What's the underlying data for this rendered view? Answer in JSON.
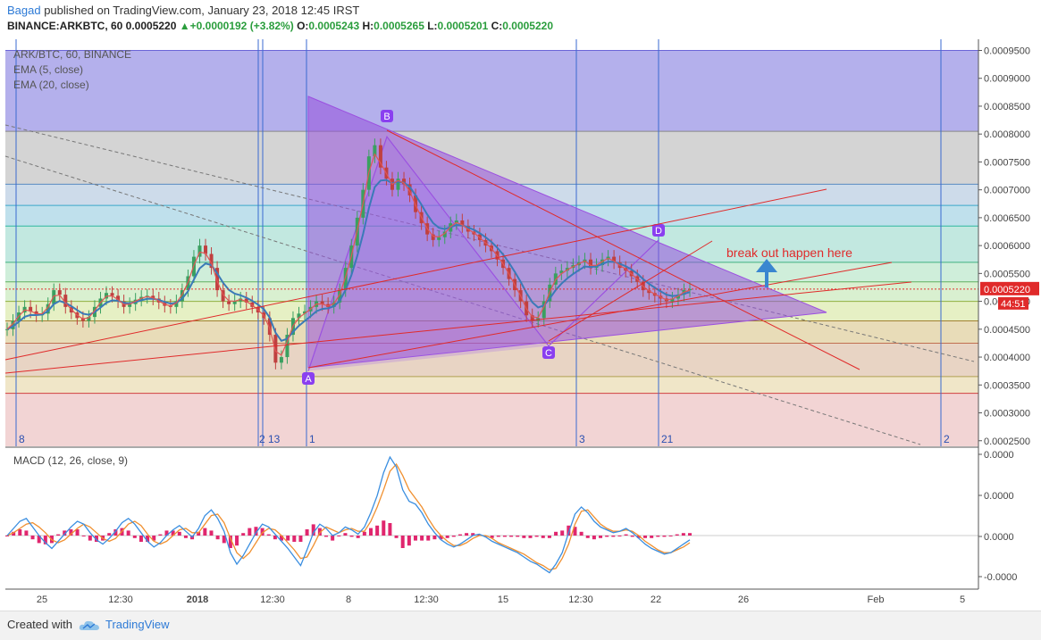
{
  "header": {
    "author": "Bagad",
    "published_text": " published on TradingView.com, January 23, 2018 12:45 IRST",
    "symbol_text": "BINANCE:ARKBTC, 60  0.0005220 ",
    "change_arrow": "▲",
    "change_text": "+0.0000192 (+3.82%) ",
    "o_label": "O:",
    "o_value": "0.0005243",
    "h_label": " H:",
    "h_value": "0.0005265",
    "l_label": " L:",
    "l_value": "0.0005201",
    "c_label": " C:",
    "c_value": "0.0005220"
  },
  "legend": {
    "title": "ARK/BTC, 60, BINANCE",
    "ema5": "EMA (5, close)",
    "ema20": "EMA (20, close)"
  },
  "macd": {
    "label": "MACD (12, 26, close, 9)"
  },
  "footer": {
    "created_with": "Created with",
    "brand": "TradingView",
    "logo_icon": "tradingview-cloud-icon"
  },
  "chart_data": [
    {
      "type": "line",
      "title": "ARK/BTC, 60, BINANCE",
      "y_axis_ticks": [
        "0.0009500",
        "0.0009000",
        "0.0008500",
        "0.0008000",
        "0.0007500",
        "0.0007000",
        "0.0006500",
        "0.0006000",
        "0.0005500",
        "0.0005000",
        "0.0004500",
        "0.0004000",
        "0.0003500",
        "0.0003000",
        "0.0002500"
      ],
      "y_range": [
        0.00024,
        0.00097
      ],
      "x_axis_ticks": [
        "25",
        "12:30",
        "2018",
        "12:30",
        "8",
        "12:30",
        "15",
        "12:30",
        "22",
        "26",
        "Feb",
        "5"
      ],
      "current_price_label": "0.0005220",
      "countdown_label": "44:51",
      "cycle_labels": [
        "8",
        "2",
        "13",
        "1",
        "3",
        "21",
        "2"
      ],
      "pattern_points": [
        {
          "label": "A",
          "price": 0.000375
        },
        {
          "label": "B",
          "price": 0.000795
        },
        {
          "label": "C",
          "price": 0.00042
        },
        {
          "label": "D",
          "price": 0.00061
        }
      ],
      "annotation": "break out happen here",
      "fib_levels": [
        0.00095,
        0.000805,
        0.00071,
        0.000672,
        0.000635,
        0.00057,
        0.000535,
        0.0005,
        0.000465,
        0.000425,
        0.000365,
        0.000335,
        0.00024
      ],
      "fib_colors": [
        "#b4b0ec",
        "#d4d4d4",
        "#cddbea",
        "#bfe0ec",
        "#c2e8e0",
        "#cfeeda",
        "#d9f0d0",
        "#e6f0c4",
        "#e8dcb8",
        "#e8d4c4",
        "#f0e6c8",
        "#f2d4d4"
      ],
      "ema5_color": "#e05555",
      "ema20_color": "#3a7ab8",
      "price": [
        0.00045,
        0.000465,
        0.00048,
        0.00049,
        0.000482,
        0.000475,
        0.000478,
        0.000495,
        0.00052,
        0.000512,
        0.00049,
        0.00048,
        0.00047,
        0.000465,
        0.000472,
        0.00049,
        0.000505,
        0.000515,
        0.00051,
        0.0005,
        0.00049,
        0.000495,
        0.000503,
        0.000508,
        0.00051,
        0.000505,
        0.000498,
        0.000492,
        0.00049,
        0.0005,
        0.00052,
        0.000545,
        0.00058,
        0.0006,
        0.000585,
        0.00056,
        0.00052,
        0.0005,
        0.000495,
        0.0005,
        0.000505,
        0.000498,
        0.00049,
        0.00048,
        0.00047,
        0.00044,
        0.00039,
        0.0004,
        0.00044,
        0.00047,
        0.000478,
        0.000482,
        0.00049,
        0.0005,
        0.000495,
        0.00049,
        0.000498,
        0.00052,
        0.00056,
        0.0006,
        0.00065,
        0.0007,
        0.00076,
        0.00078,
        0.00074,
        0.00072,
        0.0007,
        0.00072,
        0.00071,
        0.00069,
        0.00066,
        0.00064,
        0.00062,
        0.00061,
        0.000615,
        0.000625,
        0.00064,
        0.000645,
        0.000635,
        0.000625,
        0.00062,
        0.00061,
        0.0006,
        0.00059,
        0.000575,
        0.00056,
        0.00054,
        0.00052,
        0.0005,
        0.000475,
        0.000465,
        0.00047,
        0.0005,
        0.00053,
        0.00055,
        0.000555,
        0.00056,
        0.000565,
        0.00057,
        0.000575,
        0.00056,
        0.000565,
        0.000575,
        0.00058,
        0.00057,
        0.00056,
        0.000555,
        0.000545,
        0.000535,
        0.00052,
        0.000515,
        0.00051,
        0.000505,
        0.0005,
        0.000505,
        0.000512,
        0.00052,
        0.000522
      ]
    },
    {
      "type": "bar",
      "title": "MACD (12, 26, close, 9)",
      "y_axis_ticks": [
        "0.0000",
        "0.0000",
        "0.0000",
        "0.0000",
        "-0.0000"
      ],
      "macd_line_color": "#3a8ee0",
      "signal_line_color": "#f09030",
      "histogram_color": "#e0266e",
      "macd": [
        0.0,
        0.5,
        1.0,
        1.2,
        0.6,
        0.0,
        -0.5,
        -0.9,
        -0.4,
        0.1,
        0.6,
        1.0,
        0.8,
        0.2,
        -0.3,
        -0.6,
        -0.2,
        0.3,
        0.9,
        1.2,
        0.8,
        0.2,
        -0.4,
        -0.8,
        -0.5,
        0.0,
        0.4,
        0.7,
        0.3,
        -0.1,
        0.5,
        1.4,
        1.8,
        1.2,
        0.3,
        -1.2,
        -2.0,
        -1.4,
        -0.6,
        0.2,
        0.8,
        0.6,
        0.1,
        -0.4,
        -0.9,
        -1.5,
        -2.1,
        -1.0,
        0.2,
        0.8,
        0.5,
        0.0,
        0.2,
        0.6,
        0.4,
        0.1,
        0.6,
        1.6,
        2.8,
        4.4,
        5.5,
        4.8,
        3.2,
        2.4,
        2.2,
        1.6,
        0.8,
        0.2,
        -0.3,
        -0.6,
        -0.8,
        -0.6,
        -0.3,
        0.0,
        0.1,
        -0.1,
        -0.4,
        -0.6,
        -0.8,
        -1.0,
        -1.2,
        -1.5,
        -1.8,
        -2.0,
        -2.3,
        -2.6,
        -2.0,
        -1.2,
        0.2,
        1.5,
        2.0,
        1.6,
        1.0,
        0.6,
        0.4,
        0.2,
        0.3,
        0.5,
        0.2,
        -0.2,
        -0.6,
        -0.9,
        -1.1,
        -1.3,
        -1.2,
        -0.9,
        -0.6,
        -0.3
      ],
      "signal": [
        0.0,
        0.2,
        0.5,
        0.8,
        0.9,
        0.6,
        0.2,
        -0.3,
        -0.5,
        -0.3,
        0.1,
        0.5,
        0.8,
        0.6,
        0.2,
        -0.2,
        -0.4,
        -0.2,
        0.3,
        0.8,
        1.0,
        0.7,
        0.1,
        -0.4,
        -0.6,
        -0.4,
        0.0,
        0.4,
        0.5,
        0.2,
        0.2,
        0.8,
        1.4,
        1.5,
        0.9,
        -0.2,
        -1.2,
        -1.6,
        -1.2,
        -0.5,
        0.2,
        0.5,
        0.4,
        0.0,
        -0.5,
        -1.0,
        -1.6,
        -1.5,
        -0.7,
        0.2,
        0.6,
        0.4,
        0.2,
        0.4,
        0.5,
        0.3,
        0.3,
        1.0,
        2.0,
        3.2,
        4.5,
        5.0,
        4.2,
        3.2,
        2.6,
        2.0,
        1.2,
        0.5,
        0.0,
        -0.4,
        -0.7,
        -0.7,
        -0.5,
        -0.2,
        0.0,
        0.0,
        -0.2,
        -0.5,
        -0.7,
        -0.9,
        -1.1,
        -1.3,
        -1.6,
        -1.9,
        -2.1,
        -2.4,
        -2.3,
        -1.6,
        -0.6,
        0.8,
        1.7,
        1.8,
        1.3,
        0.8,
        0.5,
        0.3,
        0.3,
        0.4,
        0.3,
        0.0,
        -0.4,
        -0.7,
        -1.0,
        -1.2,
        -1.2,
        -1.0,
        -0.8,
        -0.5
      ]
    }
  ]
}
